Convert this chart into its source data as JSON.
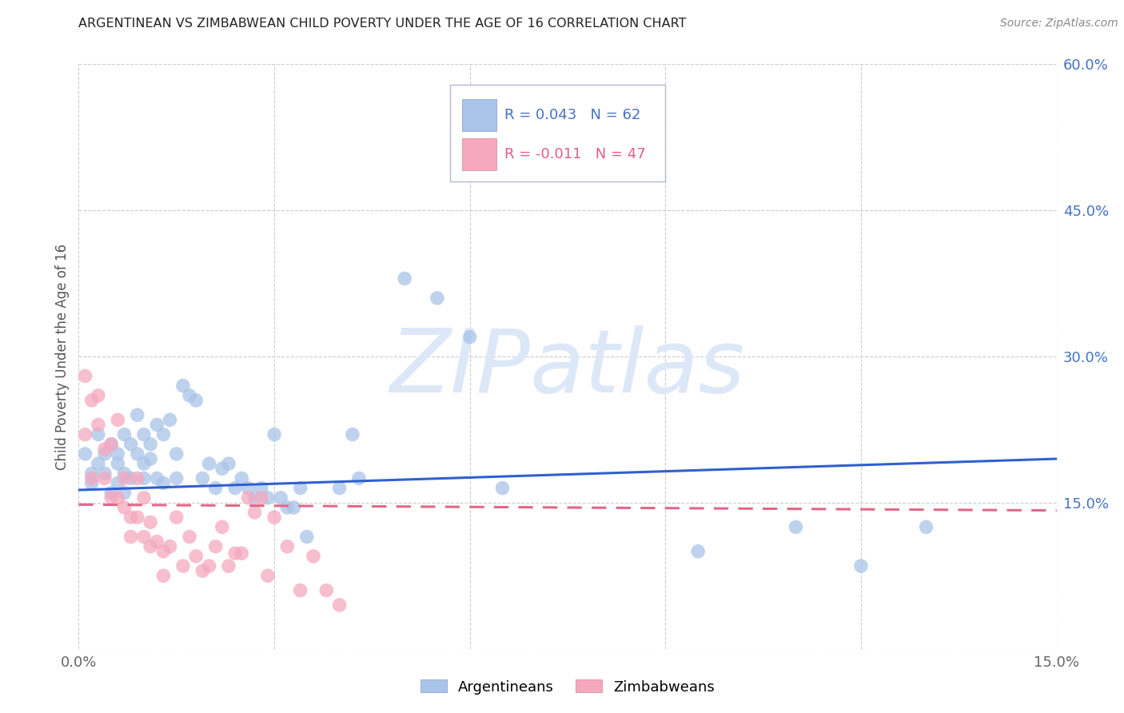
{
  "title": "ARGENTINEAN VS ZIMBABWEAN CHILD POVERTY UNDER THE AGE OF 16 CORRELATION CHART",
  "source": "Source: ZipAtlas.com",
  "ylabel": "Child Poverty Under the Age of 16",
  "xlim": [
    0.0,
    0.15
  ],
  "ylim": [
    0.0,
    0.6
  ],
  "yticks_right": [
    0.0,
    0.15,
    0.3,
    0.45,
    0.6
  ],
  "yticklabels_right": [
    "",
    "15.0%",
    "30.0%",
    "45.0%",
    "60.0%"
  ],
  "blue_R": 0.043,
  "blue_N": 62,
  "pink_R": -0.011,
  "pink_N": 47,
  "blue_color": "#a8c4e8",
  "pink_color": "#f5a8be",
  "blue_line_color": "#3060d0",
  "pink_line_color": "#e06888",
  "watermark": "ZIPatlas",
  "watermark_color": "#dce8f8",
  "legend_blue_label": "Argentineans",
  "legend_pink_label": "Zimbabweans",
  "blue_line_x0": 0.0,
  "blue_line_y0": 0.163,
  "blue_line_x1": 0.15,
  "blue_line_y1": 0.195,
  "pink_line_x0": 0.0,
  "pink_line_y0": 0.148,
  "pink_line_x1": 0.15,
  "pink_line_y1": 0.142,
  "blue_x": [
    0.001,
    0.002,
    0.002,
    0.003,
    0.003,
    0.004,
    0.004,
    0.005,
    0.005,
    0.006,
    0.006,
    0.006,
    0.007,
    0.007,
    0.007,
    0.008,
    0.008,
    0.009,
    0.009,
    0.01,
    0.01,
    0.01,
    0.011,
    0.011,
    0.012,
    0.012,
    0.013,
    0.013,
    0.014,
    0.015,
    0.015,
    0.016,
    0.017,
    0.018,
    0.019,
    0.02,
    0.021,
    0.022,
    0.023,
    0.024,
    0.025,
    0.026,
    0.027,
    0.028,
    0.029,
    0.03,
    0.031,
    0.032,
    0.033,
    0.034,
    0.035,
    0.04,
    0.042,
    0.043,
    0.05,
    0.055,
    0.06,
    0.065,
    0.095,
    0.11,
    0.12,
    0.13
  ],
  "blue_y": [
    0.2,
    0.18,
    0.17,
    0.19,
    0.22,
    0.2,
    0.18,
    0.21,
    0.16,
    0.19,
    0.17,
    0.2,
    0.18,
    0.22,
    0.16,
    0.21,
    0.175,
    0.2,
    0.24,
    0.19,
    0.22,
    0.175,
    0.21,
    0.195,
    0.23,
    0.175,
    0.22,
    0.17,
    0.235,
    0.2,
    0.175,
    0.27,
    0.26,
    0.255,
    0.175,
    0.19,
    0.165,
    0.185,
    0.19,
    0.165,
    0.175,
    0.165,
    0.155,
    0.165,
    0.155,
    0.22,
    0.155,
    0.145,
    0.145,
    0.165,
    0.115,
    0.165,
    0.22,
    0.175,
    0.38,
    0.36,
    0.32,
    0.165,
    0.1,
    0.125,
    0.085,
    0.125
  ],
  "pink_x": [
    0.001,
    0.001,
    0.002,
    0.002,
    0.003,
    0.003,
    0.004,
    0.004,
    0.005,
    0.005,
    0.006,
    0.006,
    0.007,
    0.007,
    0.008,
    0.008,
    0.009,
    0.009,
    0.01,
    0.01,
    0.011,
    0.011,
    0.012,
    0.013,
    0.013,
    0.014,
    0.015,
    0.016,
    0.017,
    0.018,
    0.019,
    0.02,
    0.021,
    0.022,
    0.023,
    0.024,
    0.025,
    0.026,
    0.027,
    0.028,
    0.029,
    0.03,
    0.032,
    0.034,
    0.036,
    0.038,
    0.04
  ],
  "pink_y": [
    0.28,
    0.22,
    0.255,
    0.175,
    0.26,
    0.23,
    0.175,
    0.205,
    0.155,
    0.21,
    0.155,
    0.235,
    0.175,
    0.145,
    0.135,
    0.115,
    0.175,
    0.135,
    0.155,
    0.115,
    0.13,
    0.105,
    0.11,
    0.075,
    0.1,
    0.105,
    0.135,
    0.085,
    0.115,
    0.095,
    0.08,
    0.085,
    0.105,
    0.125,
    0.085,
    0.098,
    0.098,
    0.155,
    0.14,
    0.155,
    0.075,
    0.135,
    0.105,
    0.06,
    0.095,
    0.06,
    0.045
  ]
}
